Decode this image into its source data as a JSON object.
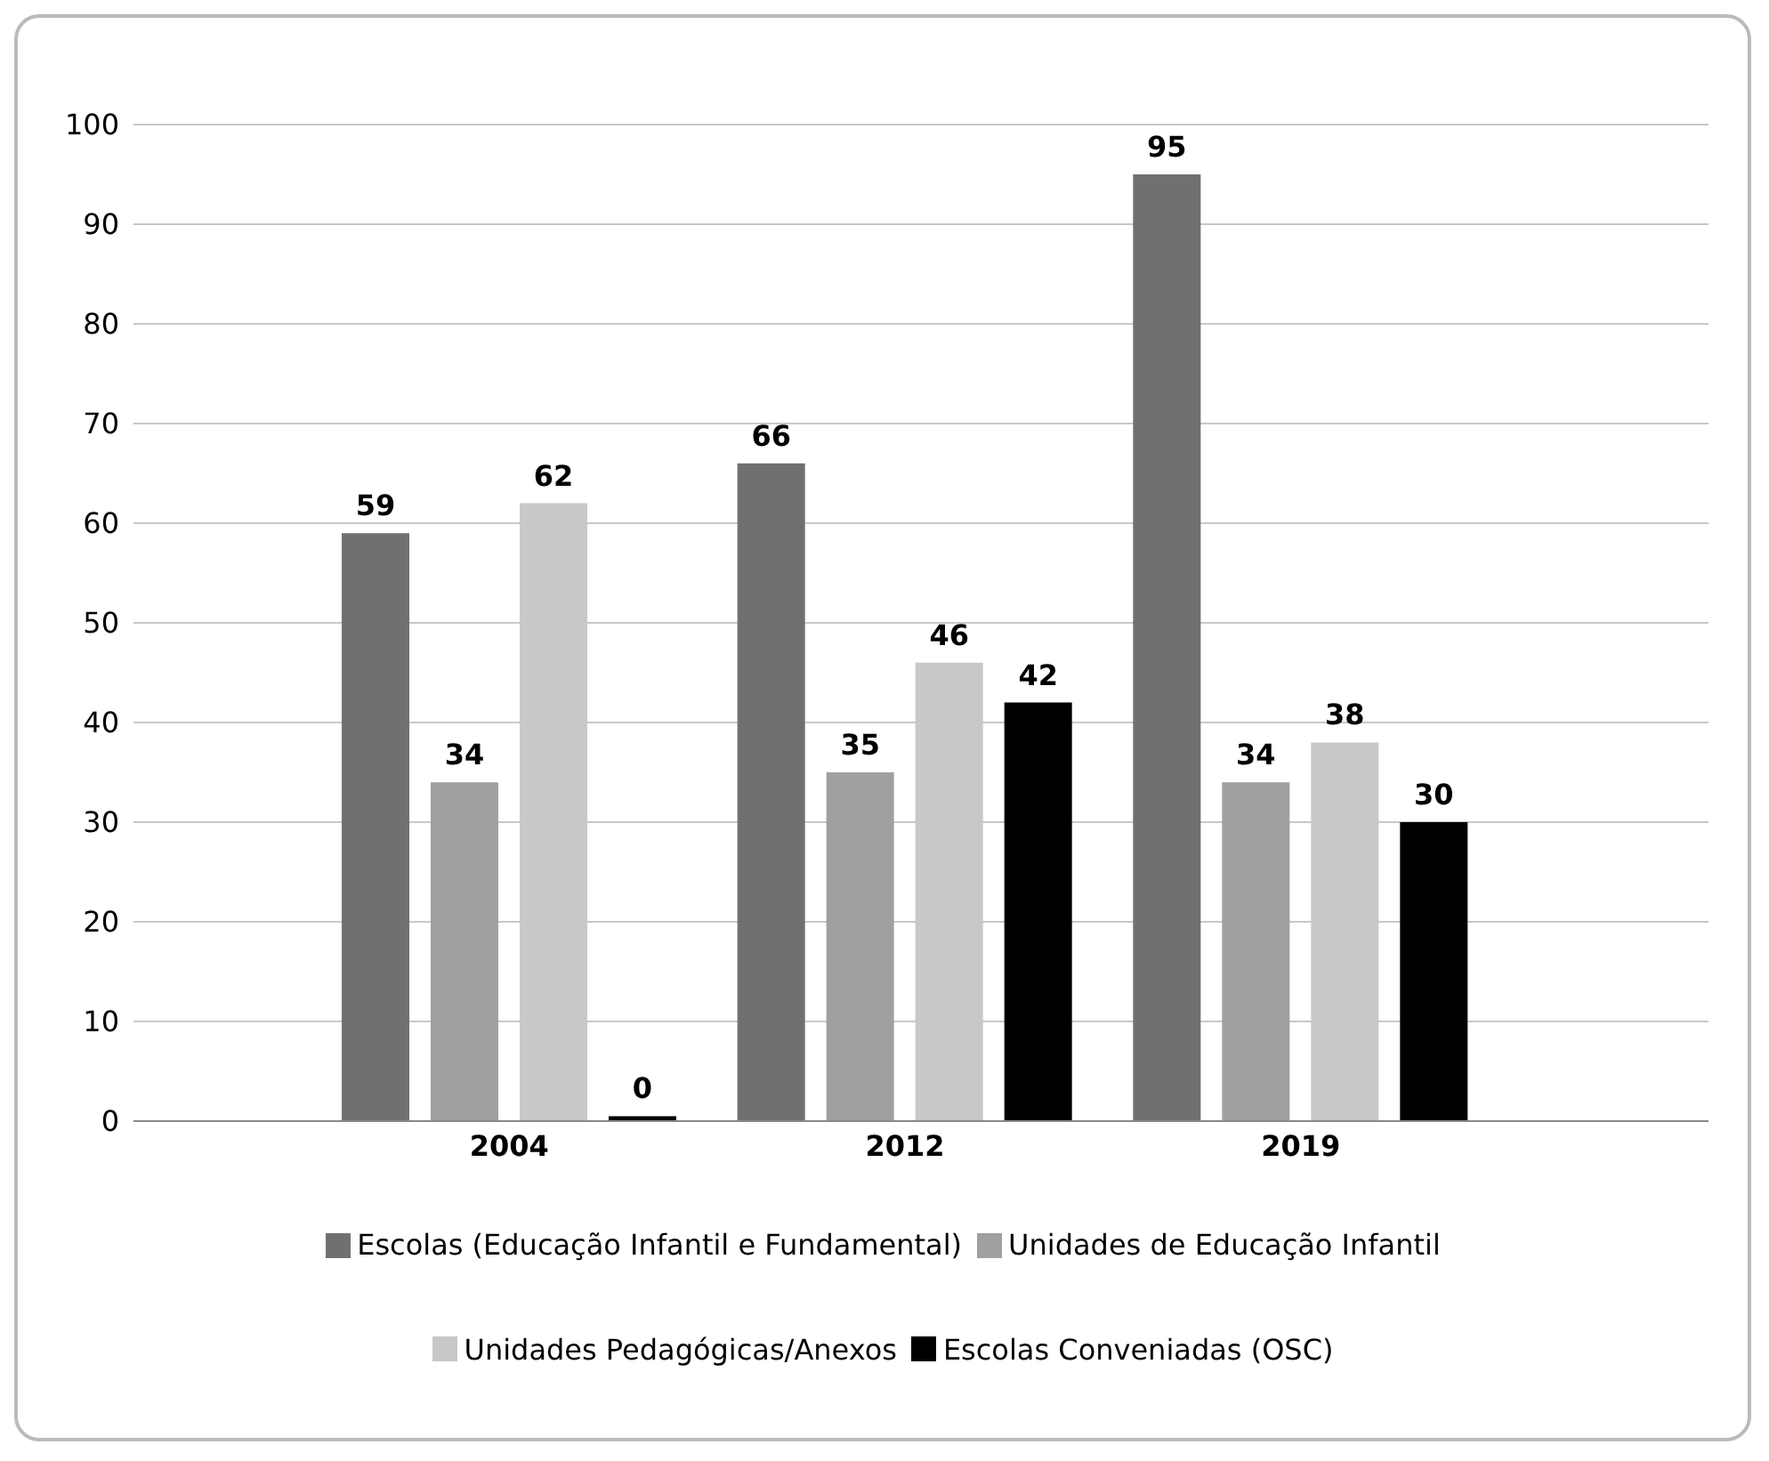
{
  "chart_data": {
    "type": "bar",
    "categories": [
      "2004",
      "2012",
      "2019"
    ],
    "series": [
      {
        "name": "Escolas (Educação Infantil e Fundamental)",
        "color": "#707070",
        "values": [
          59,
          66,
          95
        ],
        "value_labels": [
          "59",
          "66",
          "95"
        ]
      },
      {
        "name": "Unidades de Educação Infantil",
        "color": "#a0a0a0",
        "values": [
          34,
          35,
          34
        ],
        "value_labels": [
          "34",
          "35",
          "34"
        ]
      },
      {
        "name": "Unidades Pedagógicas/Anexos",
        "color": "#c8c8c8",
        "values": [
          62,
          46,
          38
        ],
        "value_labels": [
          "62",
          "46",
          "38"
        ]
      },
      {
        "name": "Escolas Conveniadas (OSC)",
        "color": "#000000",
        "values": [
          0.5,
          42,
          30
        ],
        "value_labels": [
          "0",
          "42",
          "30"
        ]
      }
    ],
    "ylim": [
      0,
      100
    ],
    "yticks": [
      0,
      10,
      20,
      30,
      40,
      50,
      60,
      70,
      80,
      90,
      100
    ],
    "grid": "y",
    "legend": "bottom"
  }
}
